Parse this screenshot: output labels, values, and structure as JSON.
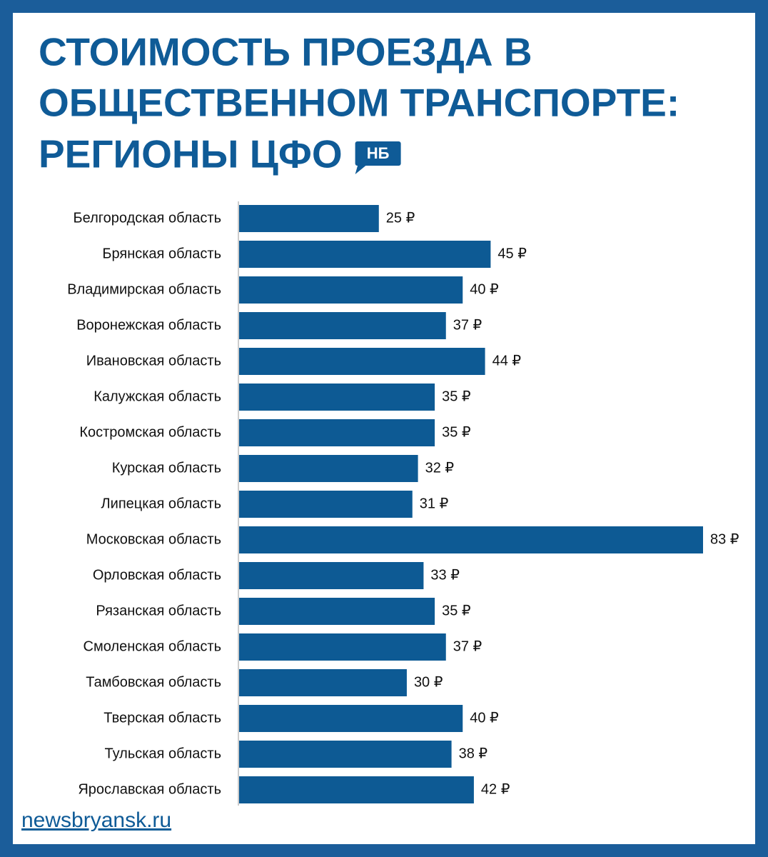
{
  "chart_data": {
    "type": "bar",
    "orientation": "horizontal",
    "title": [
      "СТОИМОСТЬ ПРОЕЗДА В",
      "ОБЩЕСТВЕННОМ ТРАНСПОРТЕ:",
      "РЕГИОНЫ ЦФО"
    ],
    "logo": "НБ",
    "categories": [
      "Белгородская область",
      "Брянская область",
      "Владимирская область",
      "Воронежская область",
      "Ивановская область",
      "Калужская область",
      "Костромская область",
      "Курская область",
      "Липецкая область",
      "Московская область",
      "Орловская область",
      "Рязанская область",
      "Смоленская область",
      "Тамбовская область",
      "Тверская область",
      "Тульская область",
      "Ярославская область"
    ],
    "values": [
      25,
      45,
      40,
      37,
      44,
      35,
      35,
      32,
      31,
      83,
      33,
      35,
      37,
      30,
      40,
      38,
      42
    ],
    "value_labels": [
      "25 ₽",
      "45 ₽",
      "40 ₽",
      "37 ₽",
      "44 ₽",
      "35 ₽",
      "35 ₽",
      "32 ₽",
      "31 ₽",
      "83 ₽",
      "33 ₽",
      "35 ₽",
      "37 ₽",
      "30 ₽",
      "40 ₽",
      "38 ₽",
      "42 ₽"
    ],
    "color": "#0d5a94",
    "source": "newsbryansk.ru"
  }
}
